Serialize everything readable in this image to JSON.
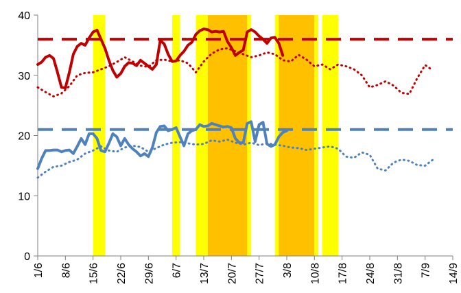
{
  "chart_data": {
    "type": "line",
    "title": "",
    "xlabel": "",
    "ylabel": "",
    "ylim": [
      0,
      40
    ],
    "yticks": [
      0,
      10,
      20,
      30,
      40
    ],
    "x_tick_labels": [
      "1/6",
      "8/6",
      "15/6",
      "22/6",
      "29/6",
      "6/7",
      "13/7",
      "20/7",
      "27/7",
      "3/8",
      "10/8",
      "17/8",
      "24/8",
      "31/8",
      "7/9",
      "14/9"
    ],
    "x_range_days": [
      0,
      105
    ],
    "grid": false,
    "legend": "none",
    "shaded_periods": [
      {
        "start": "15/6",
        "end": "18/6",
        "color": "#ffff00"
      },
      {
        "start": "5/7",
        "end": "7/7",
        "color": "#ffff00"
      },
      {
        "start": "11/7",
        "end": "14/7",
        "color": "#ffff00"
      },
      {
        "start": "14/7",
        "end": "24/7",
        "color": "#ffc000"
      },
      {
        "start": "24/7",
        "end": "25/7",
        "color": "#ffff00"
      },
      {
        "start": "31/7",
        "end": "1/8",
        "color": "#ffff00"
      },
      {
        "start": "1/8",
        "end": "10/8",
        "color": "#ffc000"
      },
      {
        "start": "10/8",
        "end": "11/8",
        "color": "#ffff00"
      },
      {
        "start": "12/8",
        "end": "16/8",
        "color": "#ffff00"
      }
    ],
    "series": [
      {
        "style": "solid",
        "color": "#c00000",
        "values": [
          [
            "1/6",
            31.8
          ],
          [
            "2/6",
            32.2
          ],
          [
            "3/6",
            33.0
          ],
          [
            "4/6",
            33.3
          ],
          [
            "5/6",
            32.8
          ],
          [
            "6/6",
            30.5
          ],
          [
            "7/6",
            28.0
          ],
          [
            "8/6",
            27.9
          ],
          [
            "9/6",
            30.5
          ],
          [
            "10/6",
            33.5
          ],
          [
            "11/6",
            34.8
          ],
          [
            "12/6",
            35.3
          ],
          [
            "13/6",
            35.0
          ],
          [
            "14/6",
            36.2
          ],
          [
            "15/6",
            37.2
          ],
          [
            "16/6",
            37.5
          ],
          [
            "17/6",
            36.0
          ],
          [
            "18/6",
            34.5
          ],
          [
            "19/6",
            32.5
          ],
          [
            "20/6",
            30.8
          ],
          [
            "21/6",
            29.7
          ],
          [
            "22/6",
            30.3
          ],
          [
            "23/6",
            31.5
          ],
          [
            "24/6",
            32.1
          ],
          [
            "25/6",
            32.0
          ],
          [
            "26/6",
            31.6
          ],
          [
            "27/6",
            32.5
          ],
          [
            "28/6",
            32.0
          ],
          [
            "29/6",
            31.5
          ],
          [
            "30/6",
            31.0
          ],
          [
            "1/7",
            31.8
          ],
          [
            "2/7",
            35.8
          ],
          [
            "3/7",
            35.2
          ],
          [
            "4/7",
            33.5
          ],
          [
            "5/7",
            32.3
          ],
          [
            "6/7",
            32.4
          ],
          [
            "7/7",
            33.3
          ],
          [
            "8/7",
            34.0
          ],
          [
            "9/7",
            35.0
          ],
          [
            "10/7",
            35.5
          ],
          [
            "11/7",
            36.8
          ],
          [
            "12/7",
            37.4
          ],
          [
            "13/7",
            37.7
          ],
          [
            "14/7",
            37.6
          ],
          [
            "15/7",
            37.2
          ],
          [
            "16/7",
            37.3
          ],
          [
            "17/7",
            37.2
          ],
          [
            "18/7",
            37.3
          ],
          [
            "19/7",
            35.6
          ],
          [
            "20/7",
            34.6
          ],
          [
            "21/7",
            33.3
          ],
          [
            "22/7",
            33.8
          ],
          [
            "23/7",
            34.2
          ],
          [
            "24/7",
            37.2
          ],
          [
            "25/7",
            37.6
          ],
          [
            "26/7",
            37.2
          ],
          [
            "27/7",
            36.5
          ],
          [
            "28/7",
            36.0
          ],
          [
            "29/7",
            35.3
          ],
          [
            "30/7",
            36.2
          ],
          [
            "31/7",
            36.3
          ],
          [
            "1/8",
            35.3
          ],
          [
            "2/8",
            33.3
          ]
        ]
      },
      {
        "style": "dotted",
        "color": "#c00000",
        "values": [
          [
            "1/6",
            28.0
          ],
          [
            "3/6",
            27.2
          ],
          [
            "5/6",
            26.5
          ],
          [
            "7/6",
            27.0
          ],
          [
            "9/6",
            28.2
          ],
          [
            "11/6",
            30.0
          ],
          [
            "13/6",
            30.4
          ],
          [
            "15/6",
            30.5
          ],
          [
            "17/6",
            31.0
          ],
          [
            "19/6",
            31.5
          ],
          [
            "21/6",
            32.2
          ],
          [
            "23/6",
            33.0
          ],
          [
            "25/6",
            32.3
          ],
          [
            "27/6",
            31.6
          ],
          [
            "29/6",
            31.4
          ],
          [
            "1/7",
            32.5
          ],
          [
            "3/7",
            32.6
          ],
          [
            "5/7",
            32.3
          ],
          [
            "7/7",
            32.5
          ],
          [
            "9/7",
            32.0
          ],
          [
            "11/7",
            30.5
          ],
          [
            "13/7",
            32.3
          ],
          [
            "15/7",
            33.6
          ],
          [
            "17/7",
            34.3
          ],
          [
            "19/7",
            34.5
          ],
          [
            "21/7",
            34.0
          ],
          [
            "23/7",
            33.5
          ],
          [
            "25/7",
            33.0
          ],
          [
            "27/7",
            33.3
          ],
          [
            "29/7",
            33.8
          ],
          [
            "31/7",
            33.5
          ],
          [
            "2/8",
            32.5
          ],
          [
            "4/8",
            32.3
          ],
          [
            "6/8",
            33.4
          ],
          [
            "8/8",
            32.6
          ],
          [
            "10/8",
            31.5
          ],
          [
            "12/8",
            31.8
          ],
          [
            "14/8",
            31.0
          ],
          [
            "16/8",
            31.8
          ],
          [
            "18/8",
            31.5
          ],
          [
            "20/8",
            31.0
          ],
          [
            "22/8",
            30.0
          ],
          [
            "24/8",
            28.0
          ],
          [
            "26/8",
            28.4
          ],
          [
            "28/8",
            29.0
          ],
          [
            "30/8",
            28.3
          ],
          [
            "1/9",
            27.1
          ],
          [
            "3/9",
            26.9
          ],
          [
            "5/9",
            29.5
          ],
          [
            "7/9",
            31.7
          ],
          [
            "9/9",
            30.8
          ]
        ]
      },
      {
        "style": "dashed",
        "color": "#c00000",
        "values": [
          [
            "1/6",
            36.0
          ],
          [
            "14/9",
            36.0
          ]
        ]
      },
      {
        "style": "solid",
        "color": "#4f81bd",
        "values": [
          [
            "1/6",
            14.5
          ],
          [
            "2/6",
            16.2
          ],
          [
            "3/6",
            17.5
          ],
          [
            "4/6",
            17.5
          ],
          [
            "5/6",
            17.6
          ],
          [
            "6/6",
            17.6
          ],
          [
            "7/6",
            17.3
          ],
          [
            "8/6",
            17.5
          ],
          [
            "9/6",
            17.6
          ],
          [
            "10/6",
            17.0
          ],
          [
            "11/6",
            18.2
          ],
          [
            "12/6",
            19.5
          ],
          [
            "13/6",
            18.5
          ],
          [
            "14/6",
            20.3
          ],
          [
            "15/6",
            20.3
          ],
          [
            "16/6",
            19.5
          ],
          [
            "17/6",
            17.5
          ],
          [
            "18/6",
            17.3
          ],
          [
            "19/6",
            18.7
          ],
          [
            "20/6",
            20.3
          ],
          [
            "21/6",
            19.8
          ],
          [
            "22/6",
            18.3
          ],
          [
            "23/6",
            19.5
          ],
          [
            "24/6",
            18.5
          ],
          [
            "25/6",
            17.8
          ],
          [
            "26/6",
            17.3
          ],
          [
            "27/6",
            16.6
          ],
          [
            "28/6",
            17.0
          ],
          [
            "29/6",
            16.5
          ],
          [
            "30/6",
            18.0
          ],
          [
            "1/7",
            20.5
          ],
          [
            "2/7",
            21.5
          ],
          [
            "3/7",
            21.6
          ],
          [
            "4/7",
            20.8
          ],
          [
            "5/7",
            21.0
          ],
          [
            "6/7",
            21.3
          ],
          [
            "7/7",
            19.8
          ],
          [
            "8/7",
            18.3
          ],
          [
            "9/7",
            20.3
          ],
          [
            "10/7",
            20.8
          ],
          [
            "11/7",
            21.0
          ],
          [
            "12/7",
            21.8
          ],
          [
            "13/7",
            21.5
          ],
          [
            "14/7",
            21.6
          ],
          [
            "15/7",
            22.0
          ],
          [
            "16/7",
            21.8
          ],
          [
            "17/7",
            21.6
          ],
          [
            "18/7",
            21.4
          ],
          [
            "19/7",
            21.5
          ],
          [
            "20/7",
            21.3
          ],
          [
            "21/7",
            19.5
          ],
          [
            "22/7",
            18.8
          ],
          [
            "23/7",
            18.8
          ],
          [
            "24/7",
            22.0
          ],
          [
            "25/7",
            22.3
          ],
          [
            "26/7",
            19.0
          ],
          [
            "27/7",
            21.8
          ],
          [
            "28/7",
            22.2
          ],
          [
            "29/7",
            18.6
          ],
          [
            "30/7",
            18.2
          ],
          [
            "31/7",
            18.5
          ],
          [
            "1/8",
            19.8
          ],
          [
            "2/8",
            20.5
          ],
          [
            "3/8",
            20.8
          ]
        ]
      },
      {
        "style": "dotted",
        "color": "#4f81bd",
        "values": [
          [
            "1/6",
            13.0
          ],
          [
            "3/6",
            14.0
          ],
          [
            "5/6",
            14.8
          ],
          [
            "7/6",
            15.0
          ],
          [
            "9/6",
            15.6
          ],
          [
            "11/6",
            16.0
          ],
          [
            "13/6",
            17.0
          ],
          [
            "15/6",
            17.5
          ],
          [
            "17/6",
            18.2
          ],
          [
            "19/6",
            17.5
          ],
          [
            "21/6",
            17.3
          ],
          [
            "23/6",
            18.0
          ],
          [
            "25/6",
            18.3
          ],
          [
            "27/6",
            18.1
          ],
          [
            "29/6",
            17.3
          ],
          [
            "1/7",
            17.9
          ],
          [
            "3/7",
            18.5
          ],
          [
            "5/7",
            18.8
          ],
          [
            "7/7",
            18.9
          ],
          [
            "9/7",
            18.7
          ],
          [
            "11/7",
            18.5
          ],
          [
            "13/7",
            18.6
          ],
          [
            "15/7",
            19.2
          ],
          [
            "17/7",
            19.0
          ],
          [
            "19/7",
            19.3
          ],
          [
            "21/7",
            18.8
          ],
          [
            "23/7",
            18.5
          ],
          [
            "25/7",
            18.8
          ],
          [
            "27/7",
            18.4
          ],
          [
            "29/7",
            18.7
          ],
          [
            "31/7",
            18.5
          ],
          [
            "2/8",
            18.3
          ],
          [
            "4/8",
            18.0
          ],
          [
            "6/8",
            17.9
          ],
          [
            "8/8",
            17.6
          ],
          [
            "10/8",
            17.8
          ],
          [
            "12/8",
            18.0
          ],
          [
            "14/8",
            18.2
          ],
          [
            "16/8",
            17.8
          ],
          [
            "18/8",
            16.5
          ],
          [
            "20/8",
            16.3
          ],
          [
            "22/8",
            17.2
          ],
          [
            "24/8",
            16.8
          ],
          [
            "26/8",
            14.5
          ],
          [
            "28/8",
            14.2
          ],
          [
            "30/8",
            15.5
          ],
          [
            "1/9",
            16.0
          ],
          [
            "3/9",
            15.8
          ],
          [
            "5/9",
            15.1
          ],
          [
            "7/9",
            15.0
          ],
          [
            "9/9",
            16.0
          ]
        ]
      },
      {
        "style": "dashed",
        "color": "#4f81bd",
        "values": [
          [
            "1/6",
            21.0
          ],
          [
            "14/9",
            21.0
          ]
        ]
      }
    ]
  }
}
